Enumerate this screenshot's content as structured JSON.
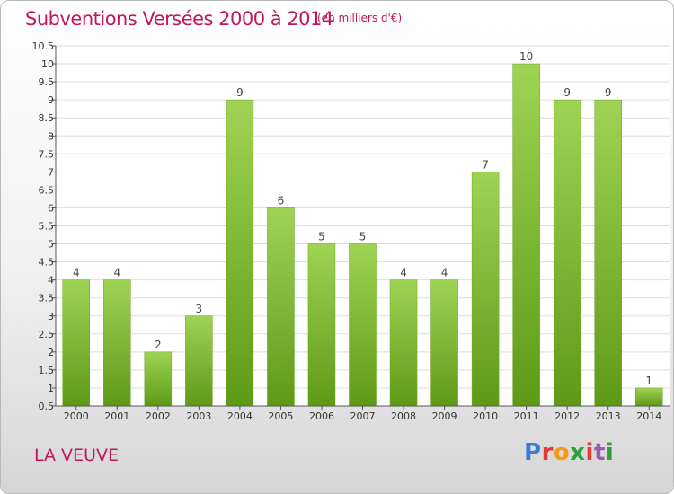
{
  "header": {
    "title": "Subventions Versées 2000 à 2014",
    "subtitle": "(en milliers d'€)"
  },
  "footer": {
    "commune": "LA VEUVE",
    "logo": "Proxiti",
    "logo_colors": [
      "#3a7bd5",
      "#e23b3b",
      "#f39c12",
      "#2e9e3e",
      "#e23b3b",
      "#9b59b6",
      "#2e9e3e"
    ]
  },
  "colors": {
    "bar_top": "#9fd354",
    "bar_bottom": "#5e9a17",
    "title": "#c2185b",
    "grid": "#dddddd"
  },
  "chart_data": {
    "type": "bar",
    "title": "Subventions Versées 2000 à 2014",
    "subtitle": "(en milliers d'€)",
    "categories": [
      "2000",
      "2001",
      "2002",
      "2003",
      "2004",
      "2005",
      "2006",
      "2007",
      "2008",
      "2009",
      "2010",
      "2011",
      "2012",
      "2013",
      "2014"
    ],
    "values": [
      4,
      4,
      2,
      3,
      9,
      6,
      5,
      5,
      4,
      4,
      7,
      10,
      9,
      9,
      1
    ],
    "value_labels": [
      "4",
      "4",
      "2",
      "3",
      "9",
      "6",
      "5",
      "5",
      "4",
      "4",
      "7",
      "10",
      "9",
      "9",
      "1"
    ],
    "ylim": [
      0.5,
      10.5
    ],
    "yticks": [
      "0.5",
      "1",
      "1.5",
      "2",
      "2.5",
      "3",
      "3.5",
      "4",
      "4.5",
      "5",
      "5.5",
      "6",
      "6.5",
      "7",
      "7.5",
      "8",
      "8.5",
      "9",
      "9.5",
      "10",
      "10.5"
    ],
    "ytick_values": [
      0.5,
      1,
      1.5,
      2,
      2.5,
      3,
      3.5,
      4,
      4.5,
      5,
      5.5,
      6,
      6.5,
      7,
      7.5,
      8,
      8.5,
      9,
      9.5,
      10,
      10.5
    ],
    "grid": true,
    "xlabel": "",
    "ylabel": ""
  }
}
